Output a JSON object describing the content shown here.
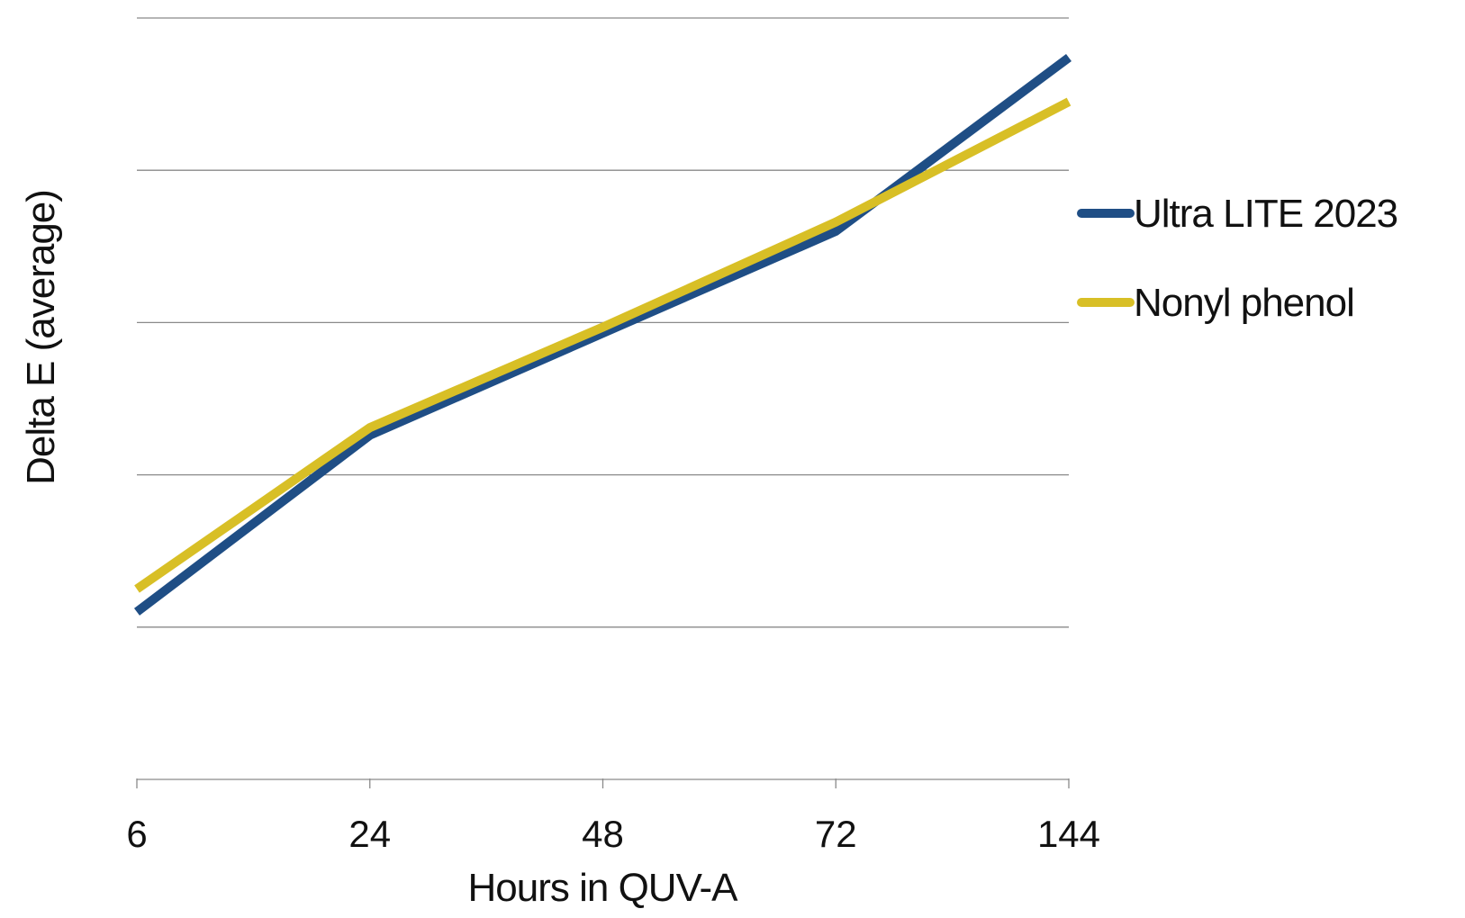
{
  "chart_data": {
    "type": "line",
    "title": "",
    "xlabel": "Hours in QUV-A",
    "ylabel": "Delta E (average)",
    "categories": [
      "6",
      "24",
      "48",
      "72",
      "144"
    ],
    "ylim": [
      0,
      5
    ],
    "yticks": [
      1,
      2,
      3,
      4,
      5
    ],
    "grid": true,
    "legend_position": "right",
    "series": [
      {
        "name": "Ultra LITE 2023",
        "color": "#1f4e85",
        "values": [
          1.1,
          2.26,
          2.93,
          3.6,
          4.74
        ]
      },
      {
        "name": "Nonyl phenol",
        "color": "#d8bf26",
        "values": [
          1.25,
          2.31,
          2.97,
          3.66,
          4.45
        ]
      }
    ]
  }
}
